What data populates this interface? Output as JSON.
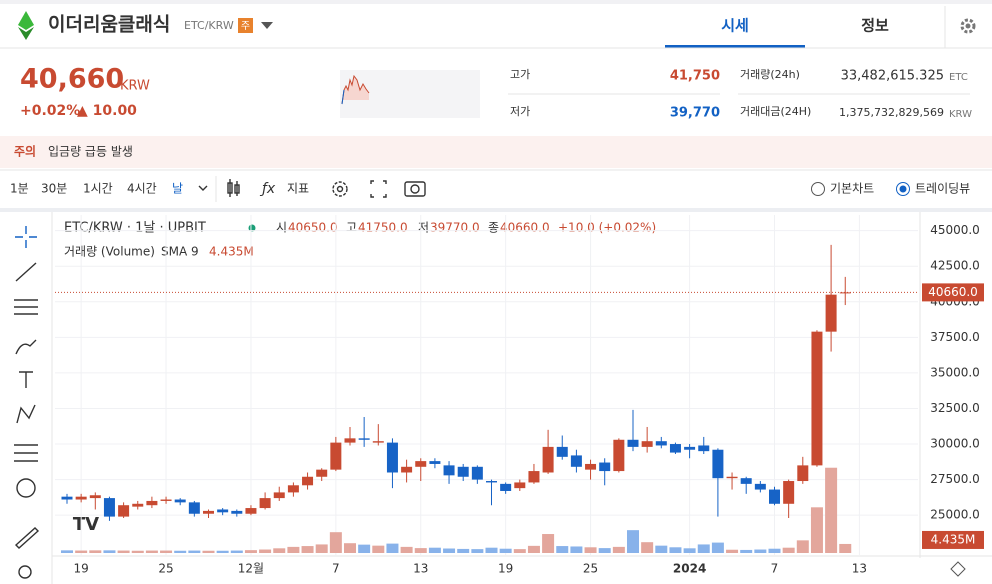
{
  "header": {
    "coin_name": "이더리움클래식",
    "pair": "ETC/KRW",
    "badge": "주",
    "tabs": [
      "시세",
      "정보"
    ]
  },
  "price": {
    "value": "40,660",
    "unit": "KRW",
    "change_rate": "+0.02%",
    "change": "▲ 10.00"
  },
  "stats": {
    "high_label": "고가",
    "high": "41,750",
    "low_label": "저가",
    "low": "39,770",
    "volume_label": "거래량(24h)",
    "volume": "33,482,615.325",
    "volume_unit": "ETC",
    "amount_label": "거래대금(24H)",
    "amount": "1,375,732,829,569",
    "amount_unit": "KRW"
  },
  "alert": {
    "level": "주의",
    "message": "입금량 급등 발생"
  },
  "toolbar": {
    "intervals": [
      "1분",
      "30분",
      "1시간",
      "4시간",
      "날"
    ],
    "indicator": "지표",
    "views": [
      "기본차트",
      "트레이딩뷰"
    ]
  },
  "legend": {
    "symbol": "ETC/KRW · 1날 · UPBIT",
    "open_label": "시",
    "open": "40650.0",
    "high_label": "고",
    "high": "41750.0",
    "low_label": "저",
    "low": "39770.0",
    "close_label": "종",
    "close": "40660.0",
    "change": "+10.0 (+0.02%)",
    "volume_name": "거래량 (Volume)",
    "sma": "SMA 9"
  },
  "chart_data": {
    "type": "candlestick",
    "categories": [
      null,
      "19",
      null,
      null,
      null,
      null,
      null,
      "25",
      null,
      null,
      null,
      null,
      null,
      "12월",
      null,
      null,
      null,
      null,
      null,
      "7",
      null,
      null,
      null,
      null,
      null,
      "13",
      null,
      null,
      null,
      null,
      null,
      "19",
      null,
      null,
      null,
      null,
      null,
      "25",
      null,
      null,
      null,
      null,
      null,
      null,
      "2024",
      null,
      null,
      null,
      null,
      null,
      "7",
      null,
      null,
      null,
      null,
      null,
      "13"
    ],
    "open": [
      26300,
      26100,
      26200,
      26200,
      24900,
      25600,
      25700,
      26000,
      26100,
      25900,
      25100,
      25400,
      25300,
      25100,
      25500,
      26200,
      26600,
      27100,
      27700,
      28200,
      30100,
      30400,
      30100,
      30100,
      28000,
      28400,
      28800,
      28500,
      28400,
      28400,
      27400,
      27200,
      26900,
      27300,
      28000,
      29800,
      29200,
      28200,
      28700,
      28100,
      30300,
      29800,
      30200,
      30000,
      29800,
      29900,
      29600,
      27600,
      27600,
      27200,
      26800,
      25800,
      27400,
      28500,
      37900,
      40650,
      null
    ],
    "high": [
      26500,
      26500,
      26600,
      26300,
      25900,
      26000,
      26300,
      26300,
      26200,
      26000,
      25400,
      25500,
      25400,
      25700,
      26600,
      27000,
      27300,
      28000,
      28300,
      30500,
      31200,
      31900,
      31400,
      30400,
      28900,
      29000,
      29000,
      28800,
      28600,
      28500,
      27500,
      27300,
      27500,
      28600,
      31000,
      30600,
      29600,
      28900,
      29000,
      30400,
      32400,
      31200,
      30500,
      30100,
      30000,
      30500,
      29700,
      28000,
      27700,
      27400,
      27000,
      27500,
      29100,
      38000,
      44000,
      41750,
      null
    ],
    "low": [
      25800,
      25900,
      25400,
      24600,
      24800,
      25400,
      25500,
      25800,
      25700,
      24900,
      24800,
      25000,
      24900,
      25000,
      25400,
      26000,
      26300,
      26800,
      27400,
      28100,
      29900,
      29800,
      29900,
      26900,
      27300,
      27400,
      28300,
      27200,
      27400,
      27200,
      25700,
      26500,
      26700,
      27200,
      27900,
      28900,
      28000,
      27500,
      27100,
      28000,
      29500,
      29400,
      29700,
      29300,
      29000,
      29300,
      24900,
      26800,
      26500,
      26600,
      25700,
      24800,
      27200,
      28400,
      36500,
      39770,
      null
    ],
    "close": [
      26100,
      26300,
      26400,
      24900,
      25700,
      25800,
      26000,
      26100,
      25900,
      25100,
      25300,
      25200,
      25100,
      25500,
      26200,
      26600,
      27100,
      27700,
      28200,
      30100,
      30400,
      30300,
      30200,
      28000,
      28400,
      28800,
      28600,
      27800,
      27700,
      27500,
      27300,
      26700,
      27300,
      28100,
      29800,
      29100,
      28400,
      28600,
      28100,
      30300,
      29800,
      30200,
      29900,
      29400,
      29600,
      29500,
      27600,
      27700,
      27200,
      26800,
      25800,
      27400,
      28500,
      37900,
      40500,
      40660,
      null
    ],
    "volume": [
      1.3,
      1.2,
      1.3,
      1.3,
      1.2,
      1.1,
      1.2,
      1.2,
      1.1,
      1.2,
      1.1,
      1.1,
      1.2,
      1.4,
      1.7,
      2.3,
      3.0,
      3.4,
      4.2,
      10.2,
      4.8,
      4.1,
      3.6,
      4.6,
      3.0,
      2.4,
      2.6,
      2.2,
      2.0,
      1.9,
      2.6,
      2.1,
      1.9,
      3.5,
      9.3,
      3.4,
      3.2,
      2.8,
      2.4,
      3.0,
      11.2,
      5.3,
      3.6,
      2.8,
      2.3,
      4.2,
      5.1,
      1.6,
      1.5,
      1.7,
      2.1,
      2.6,
      6.2,
      22.4,
      41.8,
      4.435,
      null
    ],
    "volume_label": "4.435M",
    "last_price_label": "40660.0",
    "ylim": [
      22200,
      46100
    ],
    "yticks": [
      {
        "value": 45000,
        "label": "45000.0"
      },
      {
        "value": 42500,
        "label": "42500.0"
      },
      {
        "value": 40000,
        "label": "40000.0"
      },
      {
        "value": 37500,
        "label": "37500.0"
      },
      {
        "value": 35000,
        "label": "35000.0"
      },
      {
        "value": 32500,
        "label": "32500.0"
      },
      {
        "value": 30000,
        "label": "30000.0"
      },
      {
        "value": 27500,
        "label": "27500.0"
      },
      {
        "value": 25000,
        "label": "25000.0"
      }
    ],
    "vlim": [
      0,
      50
    ],
    "grid": true,
    "up_color": "#c84a31",
    "down_color": "#1763c6",
    "volume_up_color": "#e3a69c",
    "volume_down_color": "#88b2ea"
  }
}
